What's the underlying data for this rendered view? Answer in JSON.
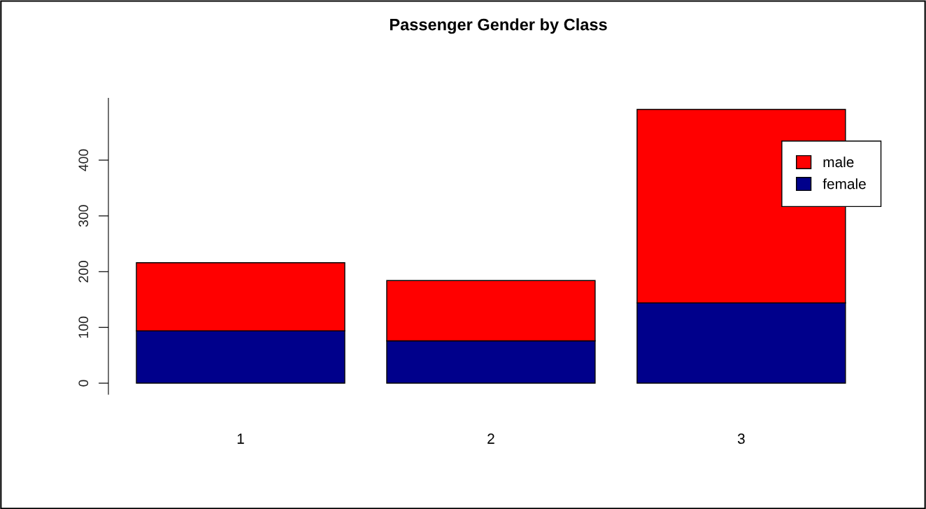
{
  "chart_data": {
    "type": "bar",
    "title": "Passenger Gender by Class",
    "categories": [
      "1",
      "2",
      "3"
    ],
    "stacked": true,
    "series": [
      {
        "name": "female",
        "color": "#00008b",
        "values": [
          94,
          76,
          144
        ]
      },
      {
        "name": "male",
        "color": "#ff0000",
        "values": [
          122,
          108,
          347
        ]
      }
    ],
    "ylim": [
      -20,
      511
    ],
    "yticks": [
      0,
      100,
      200,
      300,
      400
    ],
    "grid": false,
    "legend": "top right"
  }
}
